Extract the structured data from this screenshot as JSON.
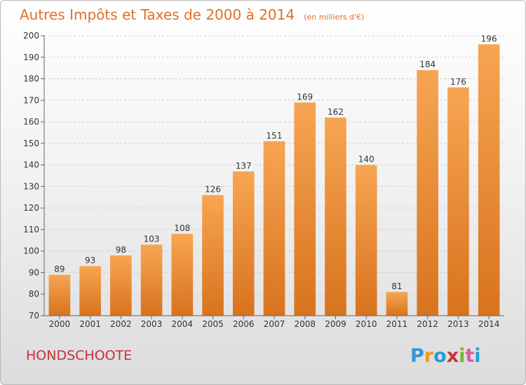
{
  "chart_data": {
    "type": "bar",
    "title": "Autres Impôts et Taxes de 2000 à 2014",
    "subtitle": "(en milliers d'€)",
    "categories": [
      "2000",
      "2001",
      "2002",
      "2003",
      "2004",
      "2005",
      "2006",
      "2007",
      "2008",
      "2009",
      "2010",
      "2011",
      "2012",
      "2013",
      "2014"
    ],
    "values": [
      89,
      93,
      98,
      103,
      108,
      126,
      137,
      151,
      169,
      162,
      140,
      81,
      184,
      176,
      196
    ],
    "ylim": [
      70,
      200
    ],
    "yticks": [
      70,
      80,
      90,
      100,
      110,
      120,
      130,
      140,
      150,
      160,
      170,
      180,
      190,
      200
    ],
    "grid": true,
    "bar_color_top": "#f7a552",
    "bar_color_bottom": "#d8731e"
  },
  "footer": {
    "commune": "HONDSCHOOTE",
    "logo": "Proxiti"
  },
  "colors": {
    "title": "#e0702a",
    "commune": "#c8313a",
    "logo_letters": [
      "#2a9ad6",
      "#f29a1f",
      "#2a9ad6",
      "#c8313a",
      "#72b832",
      "#e05aa0",
      "#2a9ad6"
    ]
  }
}
